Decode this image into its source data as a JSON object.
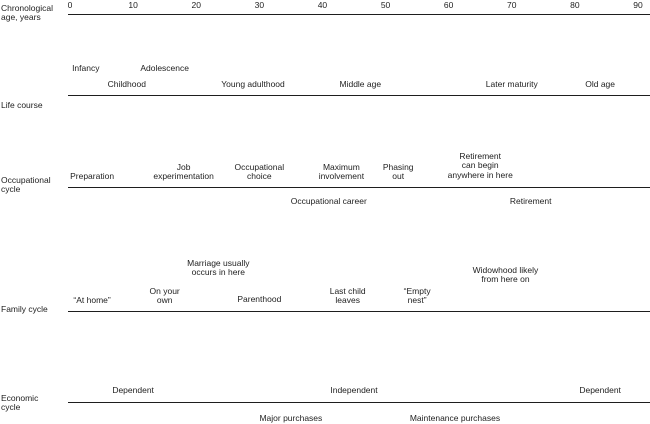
{
  "axis": {
    "label": "Chronological\nage, years",
    "ticks": [
      "0",
      "10",
      "20",
      "30",
      "40",
      "50",
      "60",
      "70",
      "80",
      "90"
    ]
  },
  "rows": [
    {
      "id": "life-course",
      "label": "Life course",
      "labels": [
        {
          "id": "infancy",
          "text": "Infancy",
          "age": 2.5
        },
        {
          "id": "adolescence",
          "text": "Adolescence",
          "age": 15
        },
        {
          "id": "childhood",
          "text": "Childhood",
          "age": 9
        },
        {
          "id": "young-adulthood",
          "text": "Young adulthood",
          "age": 29
        },
        {
          "id": "middle-age",
          "text": "Middle age",
          "age": 46
        },
        {
          "id": "later-maturity",
          "text": "Later maturity",
          "age": 70
        },
        {
          "id": "old-age",
          "text": "Old age",
          "age": 84
        }
      ]
    },
    {
      "id": "occupational-cycle",
      "label": "Occupational\ncycle",
      "labels": [
        {
          "id": "preparation",
          "text": "Preparation",
          "age": 3.5
        },
        {
          "id": "job-experimentation",
          "text": "Job\nexperimentation",
          "age": 18
        },
        {
          "id": "occupational-choice",
          "text": "Occupational\nchoice",
          "age": 30
        },
        {
          "id": "maximum-involvement",
          "text": "Maximum\ninvolvement",
          "age": 43
        },
        {
          "id": "phasing-out",
          "text": "Phasing\nout",
          "age": 52
        },
        {
          "id": "retirement-can-begin",
          "text": "Retirement\ncan begin\nanywhere in here",
          "age": 65
        },
        {
          "id": "occupational-career",
          "text": "Occupational career",
          "age": 41
        },
        {
          "id": "retirement",
          "text": "Retirement",
          "age": 73
        }
      ]
    },
    {
      "id": "family-cycle",
      "label": "Family cycle",
      "labels": [
        {
          "id": "marriage-usually",
          "text": "Marriage usually\noccurs in here",
          "age": 23.5
        },
        {
          "id": "widowhood",
          "text": "Widowhood likely\nfrom here on",
          "age": 69
        },
        {
          "id": "at-home",
          "text": "“At home”",
          "age": 3.5
        },
        {
          "id": "on-your-own",
          "text": "On your\nown",
          "age": 15
        },
        {
          "id": "parenthood",
          "text": "Parenthood",
          "age": 30
        },
        {
          "id": "last-child-leaves",
          "text": "Last child\nleaves",
          "age": 44
        },
        {
          "id": "empty-nest",
          "text": "“Empty\nnest”",
          "age": 55
        }
      ]
    },
    {
      "id": "economic-cycle",
      "label": "Economic\ncycle",
      "labels": [
        {
          "id": "dependent-early",
          "text": "Dependent",
          "age": 10
        },
        {
          "id": "independent",
          "text": "Independent",
          "age": 45
        },
        {
          "id": "dependent-late",
          "text": "Dependent",
          "age": 84
        },
        {
          "id": "major-purchases",
          "text": "Major purchases",
          "age": 35
        },
        {
          "id": "maintenance-purchases",
          "text": "Maintenance purchases",
          "age": 61
        }
      ]
    }
  ]
}
